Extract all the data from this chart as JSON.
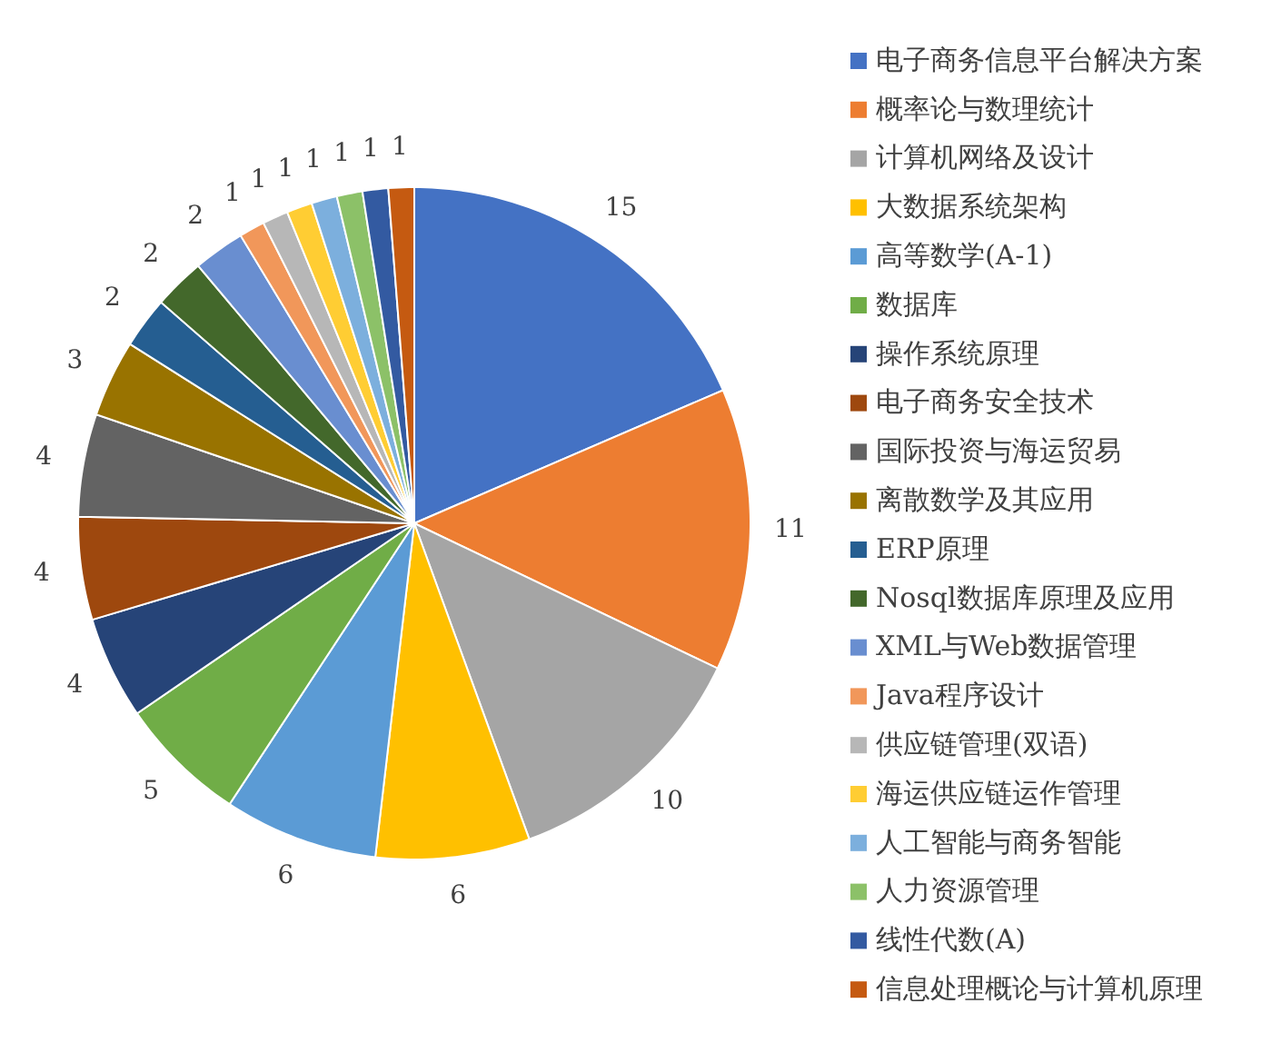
{
  "chart_data": {
    "type": "pie",
    "categories": [
      "电子商务信息平台解决方案",
      "概率论与数理统计",
      "计算机网络及设计",
      "大数据系统架构",
      "高等数学(A-1)",
      "数据库",
      "操作系统原理",
      "电子商务安全技术",
      "国际投资与海运贸易",
      "离散数学及其应用",
      "ERP原理",
      "Nosql数据库原理及应用",
      "XML与Web数据管理",
      "Java程序设计",
      "供应链管理(双语)",
      "海运供应链运作管理",
      "人工智能与商务智能",
      "人力资源管理",
      "线性代数(A)",
      "信息处理概论与计算机原理"
    ],
    "values": [
      15,
      11,
      10,
      6,
      6,
      5,
      4,
      4,
      4,
      3,
      2,
      2,
      2,
      1,
      1,
      1,
      1,
      1,
      1,
      1
    ],
    "colors": [
      "#4472c4",
      "#ed7d31",
      "#a5a5a5",
      "#ffc000",
      "#5b9bd5",
      "#70ad47",
      "#264478",
      "#9e480e",
      "#636363",
      "#997300",
      "#255e91",
      "#43682b",
      "#698ed0",
      "#f1975a",
      "#b7b7b7",
      "#ffcd33",
      "#7cafdd",
      "#8cc168",
      "#335aa1",
      "#c55a11"
    ],
    "data_labels": true,
    "legend": "right"
  }
}
